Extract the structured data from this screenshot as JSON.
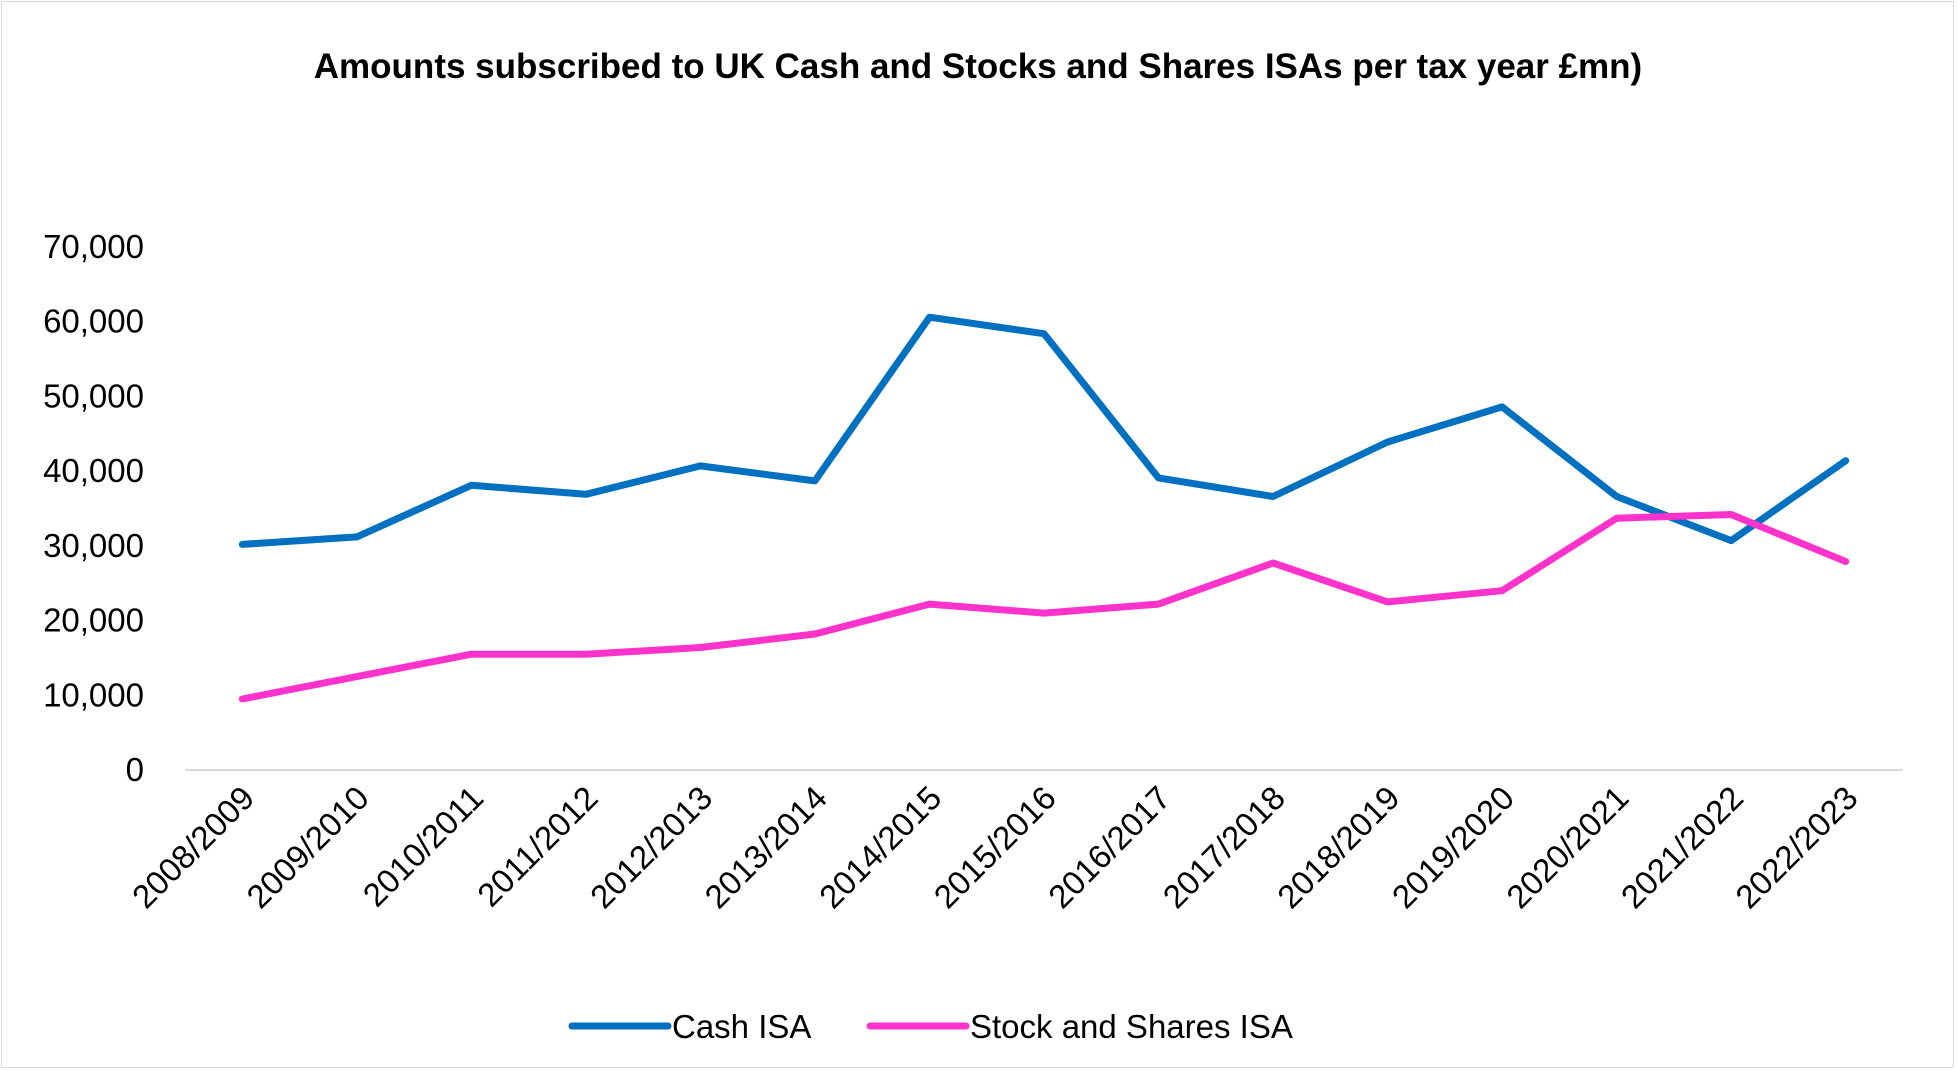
{
  "chart_data": {
    "type": "line",
    "title": "Amounts subscribed to UK Cash and Stocks and Shares ISAs per tax year £mn)",
    "xlabel": "",
    "ylabel": "",
    "categories": [
      "2008/2009",
      "2009/2010",
      "2010/2011",
      "2011/2012",
      "2012/2013",
      "2013/2014",
      "2014/2015",
      "2015/2016",
      "2016/2017",
      "2017/2018",
      "2018/2019",
      "2019/2020",
      "2020/2021",
      "2021/2022",
      "2022/2023"
    ],
    "ylim": [
      0,
      70000
    ],
    "yticks": [
      0,
      10000,
      20000,
      30000,
      40000,
      50000,
      60000,
      70000
    ],
    "ytick_labels": [
      "0",
      "10,000",
      "20,000",
      "30,000",
      "40,000",
      "50,000",
      "60,000",
      "70,000"
    ],
    "grid": false,
    "legend_position": "bottom",
    "series": [
      {
        "name": "Cash ISA",
        "color": "#0070c0",
        "values": [
          30200,
          31200,
          38100,
          36900,
          40700,
          38700,
          60600,
          58400,
          39100,
          36600,
          43900,
          48600,
          36600,
          30700,
          41400
        ]
      },
      {
        "name": "Stock and Shares ISA",
        "color": "#ff33cc",
        "values": [
          9500,
          12500,
          15500,
          15500,
          16400,
          18200,
          22200,
          21000,
          22200,
          27700,
          22500,
          24000,
          33700,
          34200,
          27900
        ]
      }
    ]
  }
}
